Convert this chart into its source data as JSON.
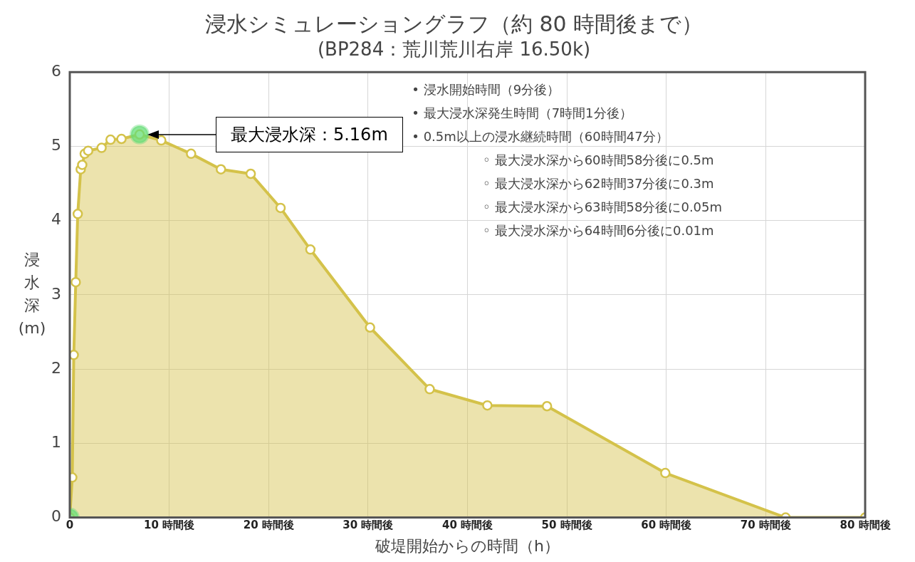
{
  "chart_data": {
    "type": "area",
    "title": "浸水シミュレーショングラフ（約 80 時間後まで）",
    "subtitle": "(BP284：荒川荒川右岸 16.50k)",
    "xlabel": "破堤開始からの時間（h）",
    "ylabel": "浸水深(m)",
    "series": [
      {
        "color": "#d4c24a",
        "x": [
          0,
          0.25,
          0.4,
          0.6,
          0.8,
          1.1,
          1.25,
          1.5,
          1.85,
          3.2,
          4.1,
          5.2,
          7.02,
          9.2,
          12.2,
          15.2,
          18.2,
          21.2,
          24.2,
          30.2,
          36.2,
          42,
          48,
          59.9,
          72,
          80
        ],
        "values": [
          0,
          0.54,
          2.19,
          3.17,
          4.09,
          4.69,
          4.75,
          4.9,
          4.94,
          4.98,
          5.09,
          5.1,
          5.16,
          5.08,
          4.9,
          4.69,
          4.63,
          4.17,
          3.61,
          2.56,
          1.73,
          1.51,
          1.5,
          0.6,
          0,
          0
        ]
      },
      {
        "type": "scatter",
        "color": "#66dd77",
        "x": [
          0,
          7.02
        ],
        "values": [
          0,
          5.16
        ]
      }
    ],
    "xlim": [
      0,
      80
    ],
    "xticks": [
      0,
      {
        "value": 10,
        "label": "10 時間後"
      },
      {
        "value": 20,
        "label": "20 時間後"
      },
      {
        "value": 30,
        "label": "30 時間後"
      },
      {
        "value": 40,
        "label": "40 時間後"
      },
      {
        "value": 50,
        "label": "50 時間後"
      },
      {
        "value": 60,
        "label": "60 時間後"
      },
      {
        "value": 70,
        "label": "70 時間後"
      },
      {
        "value": 80,
        "label": "80 時間後"
      }
    ],
    "ylim": [
      0,
      6
    ],
    "yticks": [
      0,
      1,
      2,
      3,
      4,
      5,
      6
    ],
    "grid": true,
    "legend": false,
    "marker": "circle",
    "annotations": [
      "最大浸水深：5.16m",
      "• 浸水開始時間（9分後）",
      "• 最大浸水深発生時間（7時間1分後）",
      "• 0.5m以上の浸水継続時間（60時間47分）",
      "◦ 最大浸水深から60時間58分後に0.5m",
      "◦ 最大浸水深から62時間37分後に0.3m",
      "◦ 最大浸水深から63時間58分後に0.05m",
      "◦ 最大浸水深から64時間6分後に0.01m"
    ]
  }
}
